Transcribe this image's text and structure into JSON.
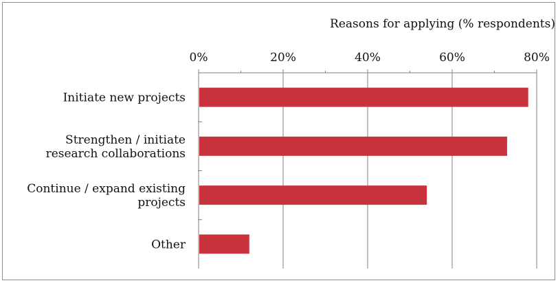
{
  "chart_data": {
    "type": "bar",
    "orientation": "horizontal",
    "title": "Reasons for applying (% respondents)",
    "categories": [
      [
        "Initiate new projects"
      ],
      [
        "Strengthen / initiate",
        "research collaborations"
      ],
      [
        "Continue / expand existing",
        "projects"
      ],
      [
        "Other"
      ]
    ],
    "values": [
      78,
      73,
      54,
      12
    ],
    "xlim": [
      0,
      80
    ],
    "x_ticks": [
      0,
      20,
      40,
      60,
      80
    ],
    "x_tick_labels": [
      "0%",
      "20%",
      "40%",
      "60%",
      "80%"
    ],
    "x_axis_position": "top",
    "grid": "vertical",
    "bar_color": "#c8333d",
    "legend": "none"
  }
}
